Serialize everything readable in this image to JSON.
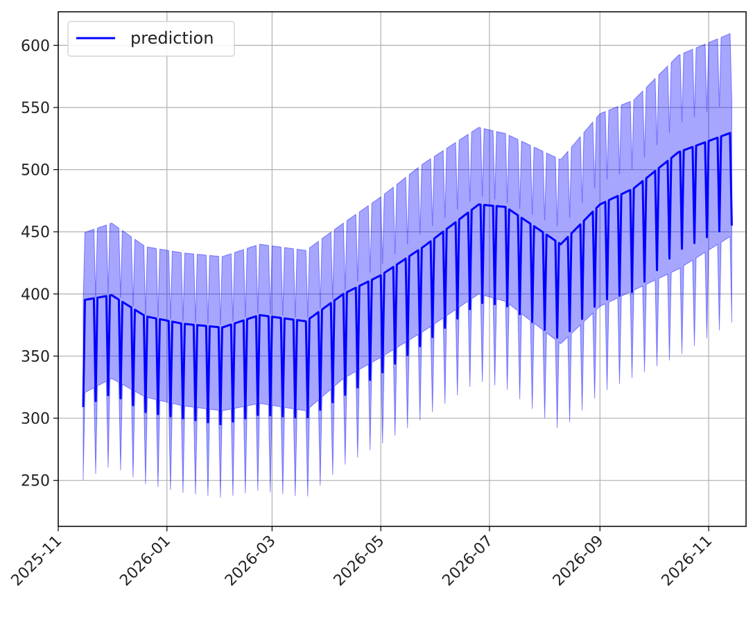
{
  "chart_data": {
    "type": "line",
    "title": "",
    "xlabel": "",
    "ylabel": "",
    "grid": true,
    "legend_placement": "top-left",
    "x_range": [
      "2025-11-01",
      "2026-11-22"
    ],
    "y_range": [
      213,
      627
    ],
    "x_ticks": [
      "2025-11",
      "2026-01",
      "2026-03",
      "2026-05",
      "2026-07",
      "2026-09",
      "2026-11"
    ],
    "y_ticks": [
      "250",
      "300",
      "350",
      "400",
      "450",
      "500",
      "550",
      "600"
    ],
    "weekly_pattern": "Each week: a single low day (weekend dip) followed by six higher days forming a plateau.",
    "series": [
      {
        "name": "prediction",
        "color": "#0000ff",
        "x": [
          "2025-11-15",
          "2025-12-01",
          "2025-12-20",
          "2026-01-10",
          "2026-02-01",
          "2026-02-22",
          "2026-03-20",
          "2026-04-10",
          "2026-05-01",
          "2026-05-25",
          "2026-06-25",
          "2026-07-10",
          "2026-08-10",
          "2026-09-01",
          "2026-09-20",
          "2026-10-15",
          "2026-11-14"
        ],
        "peak": [
          395,
          399,
          382,
          376,
          373,
          383,
          378,
          400,
          415,
          438,
          472,
          470,
          440,
          472,
          485,
          514,
          530
        ],
        "trough": [
          309,
          320,
          305,
          300,
          295,
          303,
          300,
          318,
          336,
          360,
          393,
          391,
          363,
          394,
          402,
          435,
          455
        ]
      }
    ],
    "confidence_band": {
      "color": "#0000ff",
      "opacity": 0.35,
      "upper": [
        449,
        457,
        438,
        433,
        430,
        440,
        435,
        457,
        478,
        505,
        534,
        529,
        508,
        545,
        556,
        592,
        610
      ],
      "lower": [
        250,
        262,
        247,
        240,
        236,
        242,
        236,
        262,
        279,
        300,
        330,
        324,
        290,
        320,
        333,
        350,
        377
      ]
    }
  }
}
